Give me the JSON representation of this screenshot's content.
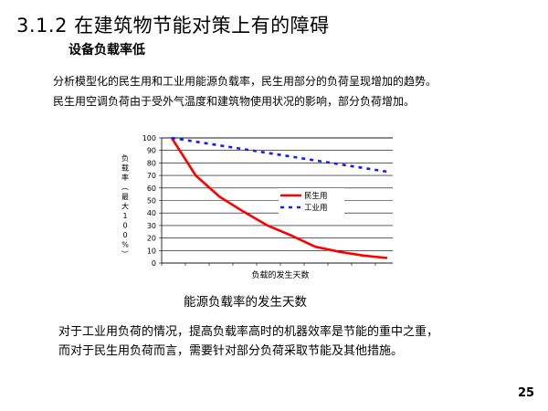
{
  "slide": {
    "title": "3.1.2 在建筑物节能对策上有的障碍",
    "subtitle": "设备负载率低",
    "intro_lines": [
      "分析模型化的民生用和工业用能源负载率，民生用部分的负荷呈现增加的趋势。",
      "民生用空调负荷由于受外气温度和建筑物使用状况的影响，部分负荷增加。"
    ],
    "chart_caption": "能源负载率的发生天数",
    "conclusion_lines": [
      "对于工业用负荷的情况，提高负载率高时的机器效率是节能的重中之重，",
      "而对于民生用负荷而言，需要针对部分负荷采取节能及其他措施。"
    ],
    "page_number": "25"
  },
  "chart_data": {
    "type": "line",
    "title": "",
    "xlabel": "负载的发生天数",
    "ylabel": "负载率（最大100%）",
    "ylim": [
      0,
      100
    ],
    "yticks": [
      0,
      10,
      20,
      30,
      40,
      50,
      60,
      70,
      80,
      90,
      100
    ],
    "x": [
      0,
      1,
      2,
      3,
      4,
      5,
      6,
      7,
      8,
      9
    ],
    "grid": true,
    "legend_position": "right",
    "series": [
      {
        "name": "民生用",
        "color": "#ff0000",
        "style": "solid",
        "values": [
          100,
          70,
          53,
          41,
          30,
          22,
          13,
          9,
          6,
          4
        ]
      },
      {
        "name": "工业用",
        "color": "#1a1aff",
        "style": "dashed",
        "values": [
          100,
          97,
          94,
          91,
          88,
          85,
          82,
          79,
          76,
          73
        ]
      }
    ]
  }
}
